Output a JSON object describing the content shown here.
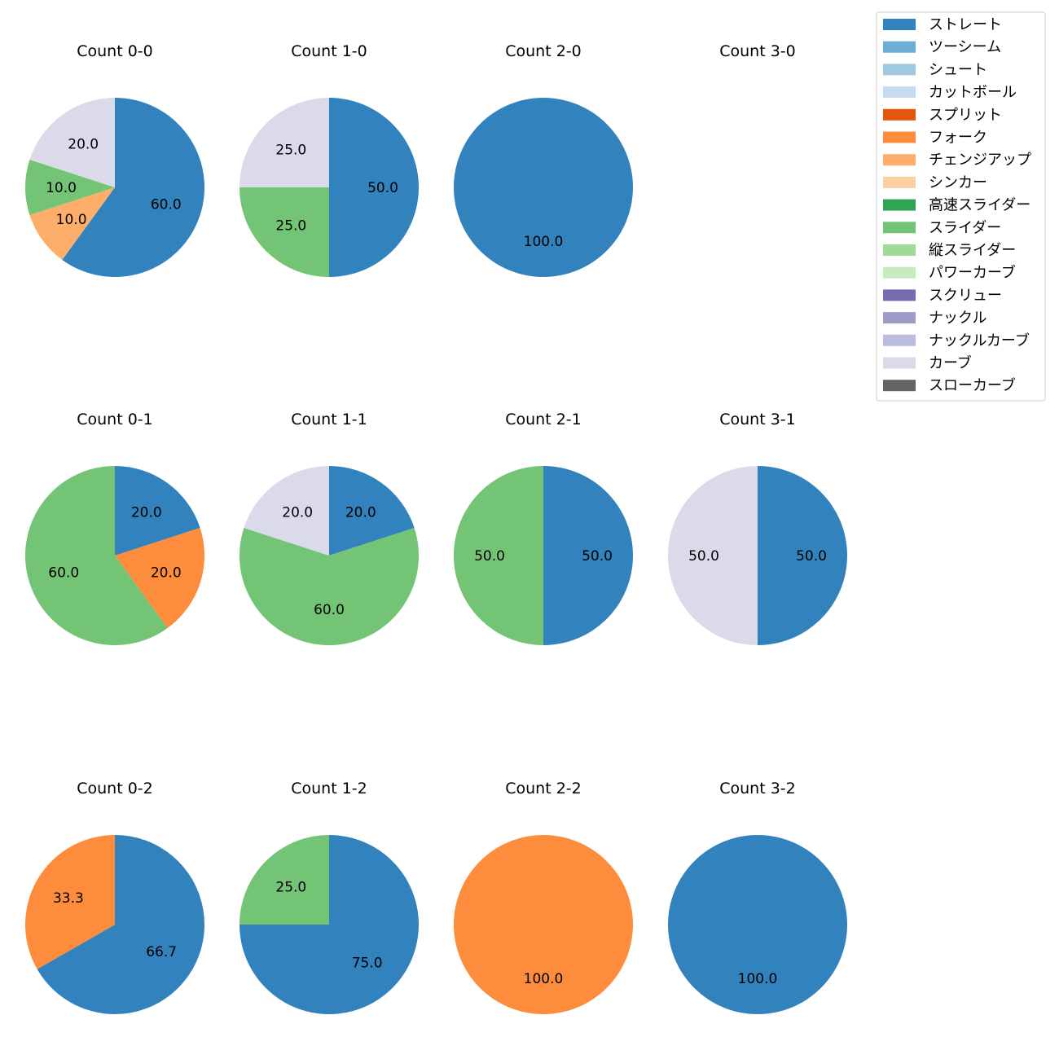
{
  "legend": {
    "entries": [
      {
        "label": "ストレート",
        "color": "#3182bd"
      },
      {
        "label": "ツーシーム",
        "color": "#6baed6"
      },
      {
        "label": "シュート",
        "color": "#9ecae1"
      },
      {
        "label": "カットボール",
        "color": "#c6dbef"
      },
      {
        "label": "スプリット",
        "color": "#e6550d"
      },
      {
        "label": "フォーク",
        "color": "#fd8d3c"
      },
      {
        "label": "チェンジアップ",
        "color": "#fdae6b"
      },
      {
        "label": "シンカー",
        "color": "#fdd0a2"
      },
      {
        "label": "高速スライダー",
        "color": "#31a354"
      },
      {
        "label": "スライダー",
        "color": "#74c476"
      },
      {
        "label": "縦スライダー",
        "color": "#a1d99b"
      },
      {
        "label": "パワーカーブ",
        "color": "#c7e9c0"
      },
      {
        "label": "スクリュー",
        "color": "#756bb1"
      },
      {
        "label": "ナックル",
        "color": "#9e9ac8"
      },
      {
        "label": "ナックルカーブ",
        "color": "#bcbddc"
      },
      {
        "label": "カーブ",
        "color": "#dadaeb"
      },
      {
        "label": "スローカーブ",
        "color": "#636363"
      }
    ]
  },
  "chart_data": [
    {
      "type": "pie",
      "title": "Count 0-0",
      "slices": [
        {
          "label": "ストレート",
          "value": 60.0,
          "color": "#3182bd"
        },
        {
          "label": "チェンジアップ",
          "value": 10.0,
          "color": "#fdae6b"
        },
        {
          "label": "スライダー",
          "value": 10.0,
          "color": "#74c476"
        },
        {
          "label": "カーブ",
          "value": 20.0,
          "color": "#dadaeb"
        }
      ]
    },
    {
      "type": "pie",
      "title": "Count 1-0",
      "slices": [
        {
          "label": "ストレート",
          "value": 50.0,
          "color": "#3182bd"
        },
        {
          "label": "スライダー",
          "value": 25.0,
          "color": "#74c476"
        },
        {
          "label": "カーブ",
          "value": 25.0,
          "color": "#dadaeb"
        }
      ]
    },
    {
      "type": "pie",
      "title": "Count 2-0",
      "slices": [
        {
          "label": "ストレート",
          "value": 100.0,
          "color": "#3182bd"
        }
      ]
    },
    {
      "type": "pie",
      "title": "Count 3-0",
      "slices": []
    },
    {
      "type": "pie",
      "title": "Count 0-1",
      "slices": [
        {
          "label": "ストレート",
          "value": 20.0,
          "color": "#3182bd"
        },
        {
          "label": "フォーク",
          "value": 20.0,
          "color": "#fd8d3c"
        },
        {
          "label": "スライダー",
          "value": 60.0,
          "color": "#74c476"
        }
      ]
    },
    {
      "type": "pie",
      "title": "Count 1-1",
      "slices": [
        {
          "label": "ストレート",
          "value": 20.0,
          "color": "#3182bd"
        },
        {
          "label": "スライダー",
          "value": 60.0,
          "color": "#74c476"
        },
        {
          "label": "カーブ",
          "value": 20.0,
          "color": "#dadaeb"
        }
      ]
    },
    {
      "type": "pie",
      "title": "Count 2-1",
      "slices": [
        {
          "label": "ストレート",
          "value": 50.0,
          "color": "#3182bd"
        },
        {
          "label": "スライダー",
          "value": 50.0,
          "color": "#74c476"
        }
      ]
    },
    {
      "type": "pie",
      "title": "Count 3-1",
      "slices": [
        {
          "label": "ストレート",
          "value": 50.0,
          "color": "#3182bd"
        },
        {
          "label": "カーブ",
          "value": 50.0,
          "color": "#dadaeb"
        }
      ]
    },
    {
      "type": "pie",
      "title": "Count 0-2",
      "slices": [
        {
          "label": "ストレート",
          "value": 66.7,
          "color": "#3182bd"
        },
        {
          "label": "フォーク",
          "value": 33.3,
          "color": "#fd8d3c"
        }
      ]
    },
    {
      "type": "pie",
      "title": "Count 1-2",
      "slices": [
        {
          "label": "ストレート",
          "value": 75.0,
          "color": "#3182bd"
        },
        {
          "label": "スライダー",
          "value": 25.0,
          "color": "#74c476"
        }
      ]
    },
    {
      "type": "pie",
      "title": "Count 2-2",
      "slices": [
        {
          "label": "フォーク",
          "value": 100.0,
          "color": "#fd8d3c"
        }
      ]
    },
    {
      "type": "pie",
      "title": "Count 3-2",
      "slices": [
        {
          "label": "ストレート",
          "value": 100.0,
          "color": "#3182bd"
        }
      ]
    }
  ]
}
